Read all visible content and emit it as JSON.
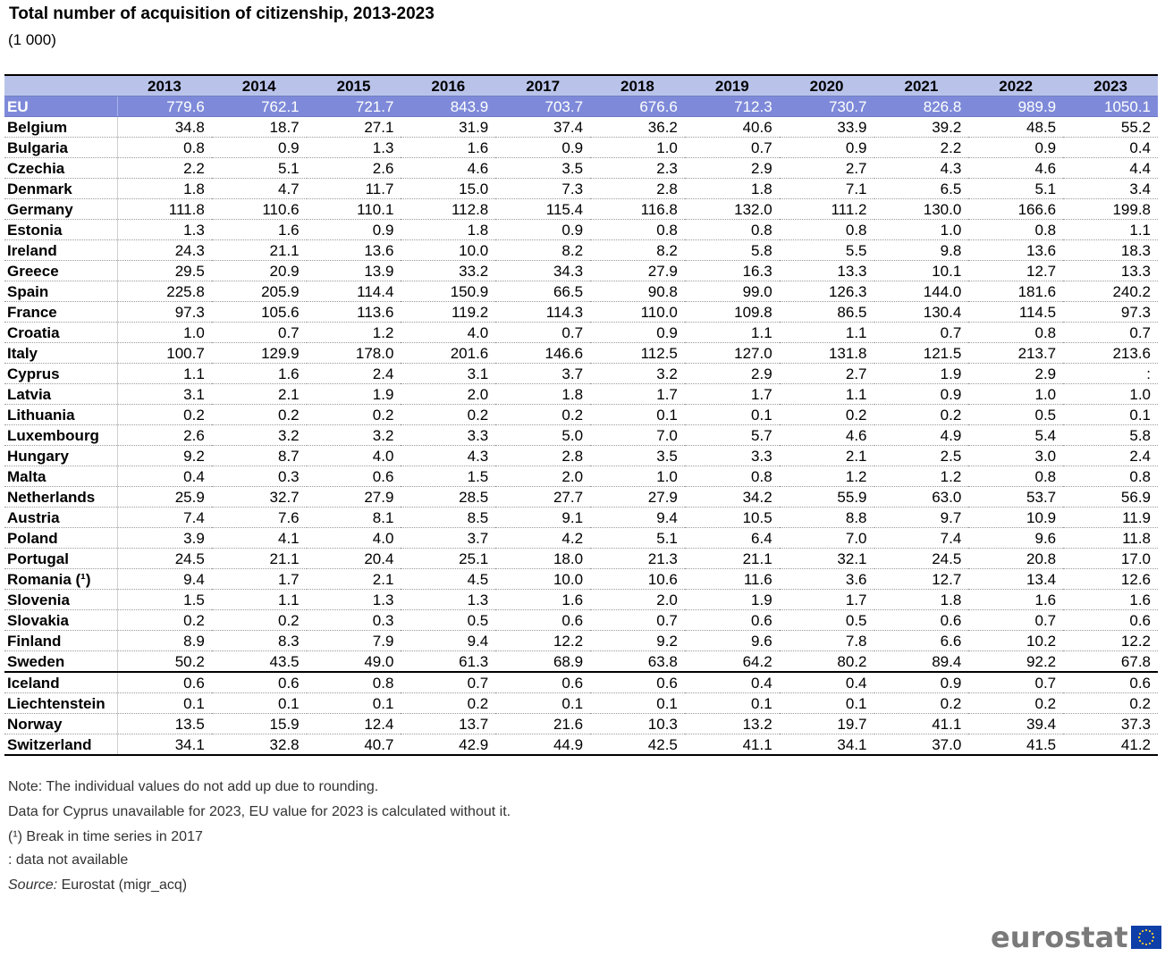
{
  "title": "Total number of acquisition of citizenship, 2013-2023",
  "subtitle": "(1 000)",
  "chart_data": {
    "type": "table",
    "title": "Total number of acquisition of citizenship, 2013-2023",
    "unit": "(1 000)",
    "columns": [
      "2013",
      "2014",
      "2015",
      "2016",
      "2017",
      "2018",
      "2019",
      "2020",
      "2021",
      "2022",
      "2023"
    ],
    "rows": [
      {
        "country": "EU",
        "values": [
          "779.6",
          "762.1",
          "721.7",
          "843.9",
          "703.7",
          "676.6",
          "712.3",
          "730.7",
          "826.8",
          "989.9",
          "1050.1"
        ]
      },
      {
        "country": "Belgium",
        "values": [
          "34.8",
          "18.7",
          "27.1",
          "31.9",
          "37.4",
          "36.2",
          "40.6",
          "33.9",
          "39.2",
          "48.5",
          "55.2"
        ]
      },
      {
        "country": "Bulgaria",
        "values": [
          "0.8",
          "0.9",
          "1.3",
          "1.6",
          "0.9",
          "1.0",
          "0.7",
          "0.9",
          "2.2",
          "0.9",
          "0.4"
        ]
      },
      {
        "country": "Czechia",
        "values": [
          "2.2",
          "5.1",
          "2.6",
          "4.6",
          "3.5",
          "2.3",
          "2.9",
          "2.7",
          "4.3",
          "4.6",
          "4.4"
        ]
      },
      {
        "country": "Denmark",
        "values": [
          "1.8",
          "4.7",
          "11.7",
          "15.0",
          "7.3",
          "2.8",
          "1.8",
          "7.1",
          "6.5",
          "5.1",
          "3.4"
        ]
      },
      {
        "country": "Germany",
        "values": [
          "111.8",
          "110.6",
          "110.1",
          "112.8",
          "115.4",
          "116.8",
          "132.0",
          "111.2",
          "130.0",
          "166.6",
          "199.8"
        ]
      },
      {
        "country": "Estonia",
        "values": [
          "1.3",
          "1.6",
          "0.9",
          "1.8",
          "0.9",
          "0.8",
          "0.8",
          "0.8",
          "1.0",
          "0.8",
          "1.1"
        ]
      },
      {
        "country": "Ireland",
        "values": [
          "24.3",
          "21.1",
          "13.6",
          "10.0",
          "8.2",
          "8.2",
          "5.8",
          "5.5",
          "9.8",
          "13.6",
          "18.3"
        ]
      },
      {
        "country": "Greece",
        "values": [
          "29.5",
          "20.9",
          "13.9",
          "33.2",
          "34.3",
          "27.9",
          "16.3",
          "13.3",
          "10.1",
          "12.7",
          "13.3"
        ]
      },
      {
        "country": "Spain",
        "values": [
          "225.8",
          "205.9",
          "114.4",
          "150.9",
          "66.5",
          "90.8",
          "99.0",
          "126.3",
          "144.0",
          "181.6",
          "240.2"
        ]
      },
      {
        "country": "France",
        "values": [
          "97.3",
          "105.6",
          "113.6",
          "119.2",
          "114.3",
          "110.0",
          "109.8",
          "86.5",
          "130.4",
          "114.5",
          "97.3"
        ]
      },
      {
        "country": "Croatia",
        "values": [
          "1.0",
          "0.7",
          "1.2",
          "4.0",
          "0.7",
          "0.9",
          "1.1",
          "1.1",
          "0.7",
          "0.8",
          "0.7"
        ]
      },
      {
        "country": "Italy",
        "values": [
          "100.7",
          "129.9",
          "178.0",
          "201.6",
          "146.6",
          "112.5",
          "127.0",
          "131.8",
          "121.5",
          "213.7",
          "213.6"
        ]
      },
      {
        "country": "Cyprus",
        "values": [
          "1.1",
          "1.6",
          "2.4",
          "3.1",
          "3.7",
          "3.2",
          "2.9",
          "2.7",
          "1.9",
          "2.9",
          ":"
        ]
      },
      {
        "country": "Latvia",
        "values": [
          "3.1",
          "2.1",
          "1.9",
          "2.0",
          "1.8",
          "1.7",
          "1.7",
          "1.1",
          "0.9",
          "1.0",
          "1.0"
        ]
      },
      {
        "country": "Lithuania",
        "values": [
          "0.2",
          "0.2",
          "0.2",
          "0.2",
          "0.2",
          "0.1",
          "0.1",
          "0.2",
          "0.2",
          "0.5",
          "0.1"
        ]
      },
      {
        "country": "Luxembourg",
        "values": [
          "2.6",
          "3.2",
          "3.2",
          "3.3",
          "5.0",
          "7.0",
          "5.7",
          "4.6",
          "4.9",
          "5.4",
          "5.8"
        ]
      },
      {
        "country": "Hungary",
        "values": [
          "9.2",
          "8.7",
          "4.0",
          "4.3",
          "2.8",
          "3.5",
          "3.3",
          "2.1",
          "2.5",
          "3.0",
          "2.4"
        ]
      },
      {
        "country": "Malta",
        "values": [
          "0.4",
          "0.3",
          "0.6",
          "1.5",
          "2.0",
          "1.0",
          "0.8",
          "1.2",
          "1.2",
          "0.8",
          "0.8"
        ]
      },
      {
        "country": "Netherlands",
        "values": [
          "25.9",
          "32.7",
          "27.9",
          "28.5",
          "27.7",
          "27.9",
          "34.2",
          "55.9",
          "63.0",
          "53.7",
          "56.9"
        ]
      },
      {
        "country": "Austria",
        "values": [
          "7.4",
          "7.6",
          "8.1",
          "8.5",
          "9.1",
          "9.4",
          "10.5",
          "8.8",
          "9.7",
          "10.9",
          "11.9"
        ]
      },
      {
        "country": "Poland",
        "values": [
          "3.9",
          "4.1",
          "4.0",
          "3.7",
          "4.2",
          "5.1",
          "6.4",
          "7.0",
          "7.4",
          "9.6",
          "11.8"
        ]
      },
      {
        "country": "Portugal",
        "values": [
          "24.5",
          "21.1",
          "20.4",
          "25.1",
          "18.0",
          "21.3",
          "21.1",
          "32.1",
          "24.5",
          "20.8",
          "17.0"
        ]
      },
      {
        "country": "Romania (¹)",
        "values": [
          "9.4",
          "1.7",
          "2.1",
          "4.5",
          "10.0",
          "10.6",
          "11.6",
          "3.6",
          "12.7",
          "13.4",
          "12.6"
        ]
      },
      {
        "country": "Slovenia",
        "values": [
          "1.5",
          "1.1",
          "1.3",
          "1.3",
          "1.6",
          "2.0",
          "1.9",
          "1.7",
          "1.8",
          "1.6",
          "1.6"
        ]
      },
      {
        "country": "Slovakia",
        "values": [
          "0.2",
          "0.2",
          "0.3",
          "0.5",
          "0.6",
          "0.7",
          "0.6",
          "0.5",
          "0.6",
          "0.7",
          "0.6"
        ]
      },
      {
        "country": "Finland",
        "values": [
          "8.9",
          "8.3",
          "7.9",
          "9.4",
          "12.2",
          "9.2",
          "9.6",
          "7.8",
          "6.6",
          "10.2",
          "12.2"
        ]
      },
      {
        "country": "Sweden",
        "values": [
          "50.2",
          "43.5",
          "49.0",
          "61.3",
          "68.9",
          "63.8",
          "64.2",
          "80.2",
          "89.4",
          "92.2",
          "67.8"
        ]
      },
      {
        "country": "Iceland",
        "values": [
          "0.6",
          "0.6",
          "0.8",
          "0.7",
          "0.6",
          "0.6",
          "0.4",
          "0.4",
          "0.9",
          "0.7",
          "0.6"
        ]
      },
      {
        "country": "Liechtenstein",
        "values": [
          "0.1",
          "0.1",
          "0.1",
          "0.2",
          "0.1",
          "0.1",
          "0.1",
          "0.1",
          "0.2",
          "0.2",
          "0.2"
        ]
      },
      {
        "country": "Norway",
        "values": [
          "13.5",
          "15.9",
          "12.4",
          "13.7",
          "21.6",
          "10.3",
          "13.2",
          "19.7",
          "41.1",
          "39.4",
          "37.3"
        ]
      },
      {
        "country": "Switzerland",
        "values": [
          "34.1",
          "32.8",
          "40.7",
          "42.9",
          "44.9",
          "42.5",
          "41.1",
          "34.1",
          "37.0",
          "41.5",
          "41.2"
        ]
      }
    ]
  },
  "notes": [
    "Note: The individual values do not add up due to rounding.",
    "Data for Cyprus unavailable for 2023, EU value for 2023 is calculated without it.",
    "(¹) Break in time series in 2017",
    ": data not available"
  ],
  "source": {
    "label": "Source:",
    "text": " Eurostat (migr_acq)"
  },
  "logo": {
    "text": "eurostat",
    "icon": "eu-flag-icon",
    "flag_color": "#0e3ea8",
    "star_color": "#f6d22f"
  },
  "colors": {
    "header_bg": "#b9c3ea",
    "eu_row_bg": "#7e8ad9"
  }
}
